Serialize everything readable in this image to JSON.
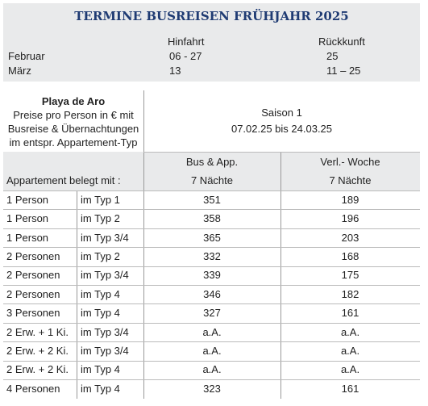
{
  "header": {
    "title": "TERMINE BUSREISEN FRÜHJAHR 2025"
  },
  "dates": {
    "columns": [
      "Hinfahrt",
      "Rückkunft"
    ],
    "rows": [
      [
        "Februar",
        "06 - 27",
        "25"
      ],
      [
        "März",
        "13",
        "11 – 25"
      ]
    ]
  },
  "table": {
    "intro": {
      "title": "Playa de Aro",
      "lines": [
        "Preise pro Person in € mit",
        "Busreise & Übernachtungen",
        "im entspr. Appartement-Typ"
      ]
    },
    "season": {
      "name": "Saison 1",
      "period": "07.02.25 bis 24.03.25"
    },
    "columns": [
      "Bus & App.",
      "Verl.- Woche"
    ],
    "row_label": "Appartement belegt mit :",
    "durations": [
      "7 Nächte",
      "7 Nächte"
    ],
    "rows": [
      [
        "1 Person",
        "im Typ 1",
        "351",
        "189"
      ],
      [
        "1 Person",
        "im Typ 2",
        "358",
        "196"
      ],
      [
        "1 Person",
        "im Typ 3/4",
        "365",
        "203"
      ],
      [
        "2 Personen",
        "im Typ 2",
        "332",
        "168"
      ],
      [
        "2 Personen",
        "im Typ 3/4",
        "339",
        "175"
      ],
      [
        "2 Personen",
        "im Typ 4",
        "346",
        "182"
      ],
      [
        "3 Personen",
        "im Typ 4",
        "327",
        "161"
      ],
      [
        "2 Erw. + 1 Ki.",
        "im Typ 3/4",
        "a.A.",
        "a.A."
      ],
      [
        "2 Erw. + 2 Ki.",
        "im Typ 3/4",
        "a.A.",
        "a.A."
      ],
      [
        "2 Erw. + 2 Ki.",
        "im Typ 4",
        "a.A.",
        "a.A."
      ],
      [
        "4 Personen",
        "im Typ 4",
        "323",
        "161"
      ]
    ]
  }
}
